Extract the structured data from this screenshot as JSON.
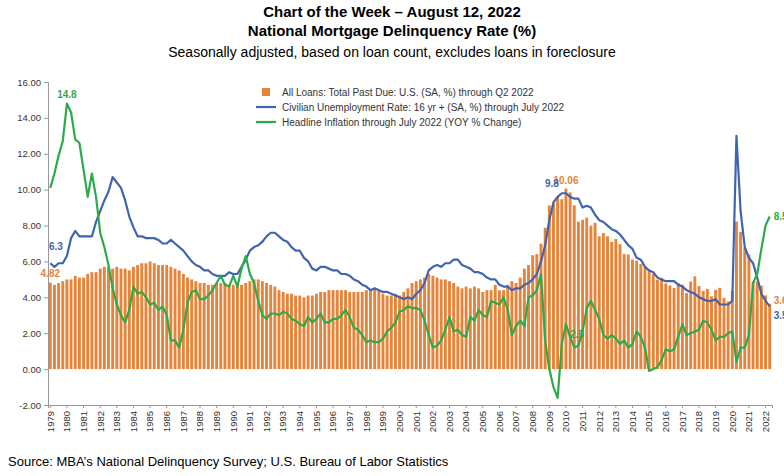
{
  "chart_data": {
    "type": "bar",
    "title": [
      "Chart of the Week – August 12, 2022",
      "National Mortgage Delinquency Rate (%)"
    ],
    "subtitle": "Seasonally adjusted, based on loan count, excludes loans in foreclosure",
    "source": "Source: MBA’s National Delinquency Survey; U.S. Bureau of Labor Statistics",
    "categories": [
      "1979",
      null,
      null,
      null,
      "1980",
      null,
      null,
      null,
      "1981",
      null,
      null,
      null,
      "1982",
      null,
      null,
      null,
      "1983",
      null,
      null,
      null,
      "1984",
      null,
      null,
      null,
      "1985",
      null,
      null,
      null,
      "1986",
      null,
      null,
      null,
      "1987",
      null,
      null,
      null,
      "1988",
      null,
      null,
      null,
      "1989",
      null,
      null,
      null,
      "1990",
      null,
      null,
      null,
      "1991",
      null,
      null,
      null,
      "1992",
      null,
      null,
      null,
      "1993",
      null,
      null,
      null,
      "1994",
      null,
      null,
      null,
      "1995",
      null,
      null,
      null,
      "1996",
      null,
      null,
      null,
      "1997",
      null,
      null,
      null,
      "1998",
      null,
      null,
      null,
      "1999",
      null,
      null,
      null,
      "2000",
      null,
      null,
      null,
      "2001",
      null,
      null,
      null,
      "2002",
      null,
      null,
      null,
      "2003",
      null,
      null,
      null,
      "2004",
      null,
      null,
      null,
      "2005",
      null,
      null,
      null,
      "2006",
      null,
      null,
      null,
      "2007",
      null,
      null,
      null,
      "2008",
      null,
      null,
      null,
      "2009",
      null,
      null,
      null,
      "2010",
      null,
      null,
      null,
      "2011",
      null,
      null,
      null,
      "2012",
      null,
      null,
      null,
      "2013",
      null,
      null,
      null,
      "2014",
      null,
      null,
      null,
      "2015",
      null,
      null,
      null,
      "2016",
      null,
      null,
      null,
      "2017",
      null,
      null,
      null,
      "2018",
      null,
      null,
      null,
      "2019",
      null,
      null,
      null,
      "2020",
      null,
      null,
      null,
      "2021",
      null,
      null,
      null,
      "2022",
      null
    ],
    "series": [
      {
        "name": "All Loans: Total Past Due: U.S. (SA, %) through Q2 2022",
        "type": "bar",
        "color": "#e8833a",
        "values": [
          4.82,
          4.7,
          4.8,
          4.9,
          5.0,
          5.0,
          5.2,
          5.1,
          5.1,
          5.3,
          5.4,
          5.4,
          5.6,
          5.7,
          5.7,
          5.6,
          5.7,
          5.6,
          5.6,
          5.5,
          5.7,
          5.8,
          5.9,
          5.9,
          6.0,
          5.9,
          5.8,
          5.8,
          5.8,
          5.7,
          5.6,
          5.5,
          5.3,
          5.1,
          5.0,
          4.9,
          4.8,
          4.8,
          4.7,
          4.7,
          4.8,
          4.8,
          4.8,
          4.7,
          4.7,
          4.8,
          4.7,
          4.8,
          4.9,
          5.0,
          5.0,
          4.9,
          4.8,
          4.7,
          4.6,
          4.4,
          4.3,
          4.2,
          4.2,
          4.1,
          4.1,
          4.0,
          4.1,
          4.1,
          4.2,
          4.3,
          4.3,
          4.4,
          4.4,
          4.4,
          4.4,
          4.4,
          4.3,
          4.3,
          4.3,
          4.3,
          4.4,
          4.4,
          4.5,
          4.4,
          4.2,
          4.1,
          4.1,
          4.2,
          4.1,
          4.3,
          4.5,
          4.8,
          4.9,
          5.0,
          5.1,
          5.3,
          5.2,
          5.1,
          5.0,
          5.0,
          4.9,
          4.8,
          4.6,
          4.5,
          4.6,
          4.5,
          4.6,
          4.5,
          4.3,
          4.4,
          4.4,
          4.7,
          4.4,
          4.4,
          4.7,
          4.9,
          4.8,
          5.1,
          5.6,
          5.8,
          6.35,
          6.41,
          6.99,
          7.88,
          9.12,
          9.24,
          9.64,
          9.47,
          10.06,
          9.85,
          9.13,
          8.22,
          8.32,
          8.44,
          7.99,
          8.15,
          7.4,
          7.58,
          7.4,
          7.09,
          7.25,
          6.96,
          6.41,
          6.39,
          6.11,
          6.04,
          5.85,
          5.68,
          5.54,
          5.3,
          4.99,
          5.08,
          4.77,
          4.66,
          4.52,
          4.8,
          4.71,
          4.24,
          4.88,
          5.17,
          4.63,
          4.36,
          4.47,
          4.06,
          4.42,
          4.53,
          3.97,
          3.77,
          4.36,
          8.22,
          7.65,
          6.73,
          6.38,
          4.88,
          4.88,
          4.65,
          4.11,
          3.64
        ]
      },
      {
        "name": "Civilian Unemployment Rate: 16 yr + (SA, %) through July 2022",
        "type": "line",
        "color": "#4065b0",
        "values": [
          5.9,
          5.7,
          5.9,
          5.9,
          6.3,
          7.3,
          7.7,
          7.4,
          7.4,
          7.4,
          7.4,
          8.2,
          8.8,
          9.4,
          9.9,
          10.7,
          10.4,
          10.1,
          9.4,
          8.5,
          7.9,
          7.4,
          7.4,
          7.3,
          7.3,
          7.3,
          7.2,
          7.0,
          7.0,
          7.2,
          7.0,
          6.8,
          6.6,
          6.3,
          6.0,
          5.8,
          5.7,
          5.5,
          5.5,
          5.3,
          5.2,
          5.2,
          5.2,
          5.4,
          5.3,
          5.3,
          5.7,
          6.1,
          6.6,
          6.8,
          6.9,
          7.1,
          7.4,
          7.6,
          7.6,
          7.4,
          7.2,
          7.1,
          6.8,
          6.6,
          6.6,
          6.2,
          6.0,
          5.6,
          5.5,
          5.7,
          5.7,
          5.6,
          5.5,
          5.5,
          5.3,
          5.3,
          5.2,
          5.0,
          4.9,
          4.7,
          4.6,
          4.4,
          4.5,
          4.4,
          4.3,
          4.3,
          4.2,
          4.1,
          4.0,
          3.9,
          4.0,
          3.9,
          4.2,
          4.4,
          4.8,
          5.5,
          5.7,
          5.8,
          5.7,
          5.9,
          5.9,
          6.1,
          6.1,
          5.8,
          5.7,
          5.6,
          5.4,
          5.4,
          5.3,
          5.1,
          5.0,
          5.0,
          4.7,
          4.6,
          4.6,
          4.4,
          4.5,
          4.5,
          4.7,
          4.8,
          5.0,
          5.3,
          6.0,
          6.9,
          8.3,
          9.3,
          9.6,
          9.8,
          9.8,
          9.6,
          9.5,
          9.5,
          9.0,
          9.1,
          9.0,
          8.6,
          8.3,
          8.2,
          8.0,
          7.8,
          7.7,
          7.5,
          7.2,
          6.9,
          6.7,
          6.2,
          6.1,
          5.7,
          5.5,
          5.4,
          5.1,
          5.0,
          4.9,
          4.9,
          4.9,
          4.7,
          4.6,
          4.4,
          4.3,
          4.2,
          4.0,
          3.9,
          3.8,
          3.8,
          3.9,
          3.6,
          3.6,
          3.6,
          3.8,
          13.0,
          8.8,
          6.8,
          6.2,
          5.9,
          5.1,
          4.2,
          3.8,
          3.5
        ]
      },
      {
        "name": "Headline Inflation through July 2022 (YOY % Change)",
        "type": "line",
        "color": "#2eaa4a",
        "values": [
          10.1,
          10.9,
          11.9,
          12.7,
          14.8,
          14.3,
          12.8,
          12.6,
          11.1,
          9.6,
          10.9,
          9.6,
          7.6,
          6.8,
          5.8,
          4.5,
          3.6,
          3.0,
          2.6,
          3.3,
          4.6,
          4.2,
          4.3,
          4.0,
          3.6,
          3.7,
          3.3,
          3.5,
          3.0,
          1.6,
          1.6,
          1.2,
          2.2,
          3.7,
          4.3,
          4.4,
          3.9,
          3.9,
          4.1,
          4.4,
          4.8,
          5.2,
          4.7,
          4.6,
          5.2,
          4.6,
          5.6,
          6.3,
          5.3,
          4.8,
          3.8,
          3.0,
          2.8,
          3.1,
          3.1,
          3.0,
          3.2,
          3.1,
          2.8,
          2.7,
          2.5,
          2.4,
          2.9,
          2.6,
          2.8,
          3.1,
          2.6,
          2.6,
          2.8,
          2.8,
          3.0,
          3.3,
          2.9,
          2.3,
          2.2,
          1.9,
          1.5,
          1.6,
          1.5,
          1.5,
          1.7,
          2.1,
          2.3,
          2.6,
          3.2,
          3.3,
          3.5,
          3.4,
          3.4,
          3.3,
          2.7,
          1.9,
          1.2,
          1.3,
          1.6,
          2.2,
          2.9,
          2.1,
          2.2,
          1.9,
          1.8,
          2.9,
          2.7,
          3.3,
          3.0,
          2.9,
          3.8,
          3.7,
          3.6,
          4.0,
          3.3,
          1.9,
          2.4,
          2.7,
          2.4,
          4.0,
          4.1,
          4.4,
          5.3,
          1.6,
          0.0,
          -1.0,
          -1.6,
          1.4,
          2.5,
          1.8,
          1.2,
          1.3,
          2.1,
          3.4,
          3.8,
          3.3,
          2.8,
          1.9,
          1.7,
          1.9,
          1.7,
          1.4,
          1.6,
          1.2,
          1.4,
          2.1,
          1.8,
          1.2,
          -0.1,
          0.0,
          0.1,
          0.5,
          1.1,
          1.0,
          1.1,
          1.8,
          2.5,
          1.9,
          2.0,
          2.1,
          2.2,
          2.7,
          2.6,
          2.2,
          1.6,
          1.8,
          1.8,
          2.0,
          2.1,
          0.4,
          1.2,
          1.2,
          1.9,
          4.8,
          5.3,
          6.7,
          8.0,
          8.5
        ]
      }
    ],
    "annotations": [
      {
        "text": "4.82",
        "series": 0,
        "index": 0
      },
      {
        "text": "10.06",
        "series": 0,
        "index": 124
      },
      {
        "text": "3.64",
        "series": 0,
        "index": 173
      },
      {
        "text": "6.3",
        "series": 1,
        "index": 4
      },
      {
        "text": "9.8",
        "series": 1,
        "index": 123
      },
      {
        "text": "3.5",
        "series": 1,
        "index": 173
      },
      {
        "text": "14.8",
        "series": 2,
        "index": 4
      },
      {
        "text": "2.5",
        "series": 2,
        "index": 124
      },
      {
        "text": "8.5",
        "series": 2,
        "index": 173
      }
    ],
    "ylim": [
      -2,
      16
    ],
    "yticks": [
      {
        "value": -2,
        "label": "-2.00"
      },
      {
        "value": 0,
        "label": "0.00"
      },
      {
        "value": 2,
        "label": "2.00"
      },
      {
        "value": 4,
        "label": "4.00"
      },
      {
        "value": 6,
        "label": "6.00"
      },
      {
        "value": 8,
        "label": "8.00"
      },
      {
        "value": 10,
        "label": "10.00"
      },
      {
        "value": 12,
        "label": "12.00"
      },
      {
        "value": 14,
        "label": "14.00"
      },
      {
        "value": 16,
        "label": "16.00"
      }
    ],
    "grid": false,
    "legend": "top"
  }
}
